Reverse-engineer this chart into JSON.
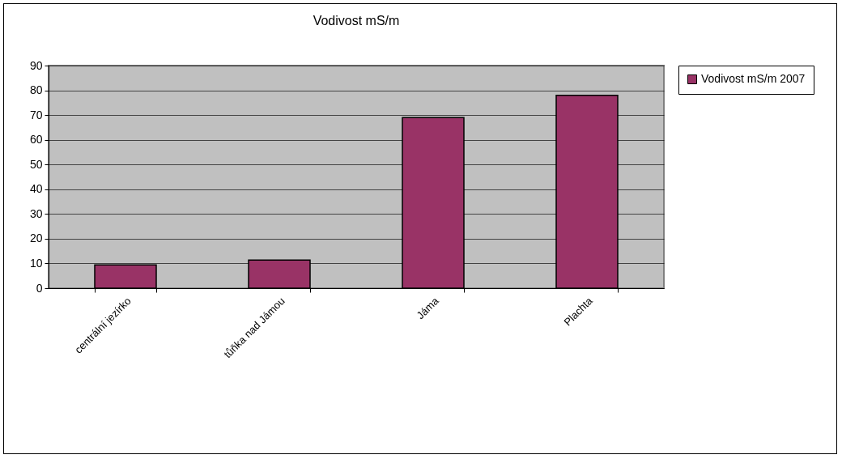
{
  "chart_data": {
    "type": "bar",
    "title": "Vodivost mS/m",
    "categories": [
      "centrální jezírko",
      "tůňka nad Jámou",
      "Jáma",
      "Plachta"
    ],
    "series": [
      {
        "name": "Vodivost mS/m 2007",
        "color": "#993366",
        "values": [
          9.4,
          11.4,
          69,
          78
        ]
      }
    ],
    "ylim": [
      0,
      90
    ],
    "yticks": [
      0,
      10,
      20,
      30,
      40,
      50,
      60,
      70,
      80,
      90
    ],
    "grid": "y",
    "legend": "right"
  }
}
